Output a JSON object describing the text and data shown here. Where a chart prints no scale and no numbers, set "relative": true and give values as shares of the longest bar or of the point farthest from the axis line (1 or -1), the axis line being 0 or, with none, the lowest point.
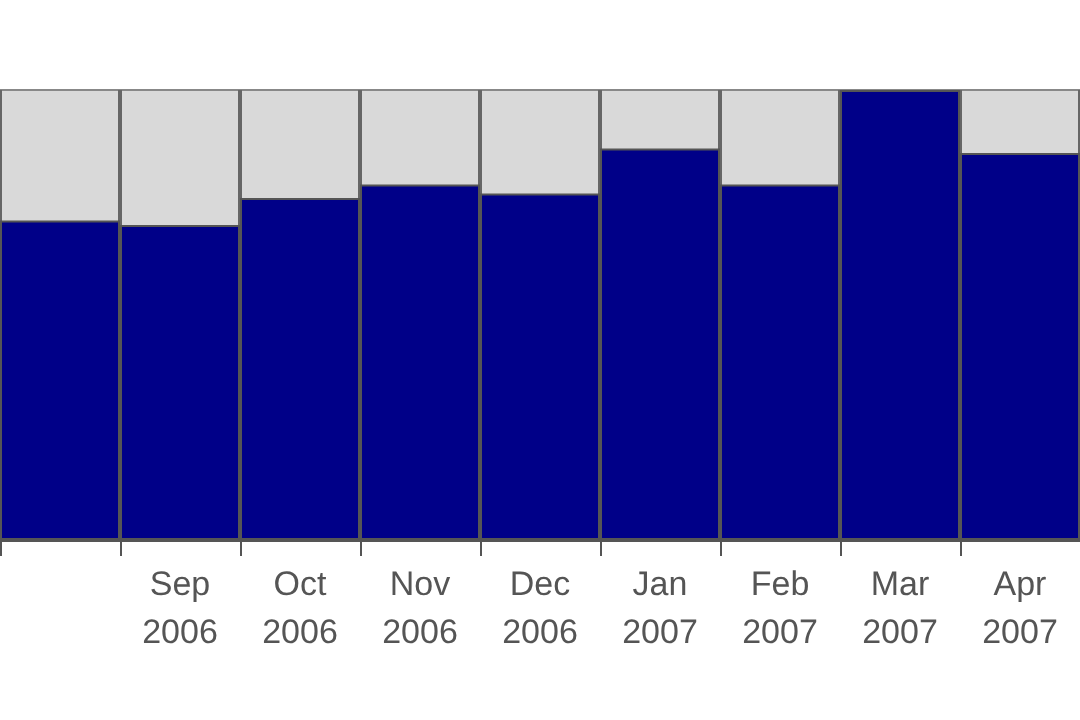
{
  "chart_data": {
    "type": "bar",
    "relative": true,
    "categories": [
      null,
      "Sep\n2006",
      "Oct\n2006",
      "Nov\n2006",
      "Dec\n2006",
      "Jan\n2007",
      "Feb\n2007",
      "Mar\n2007",
      "Apr\n2007"
    ],
    "values": [
      0.71,
      0.7,
      0.76,
      0.79,
      0.77,
      0.87,
      0.79,
      1,
      0.86
    ],
    "color": "#000088",
    "grid": "x"
  }
}
